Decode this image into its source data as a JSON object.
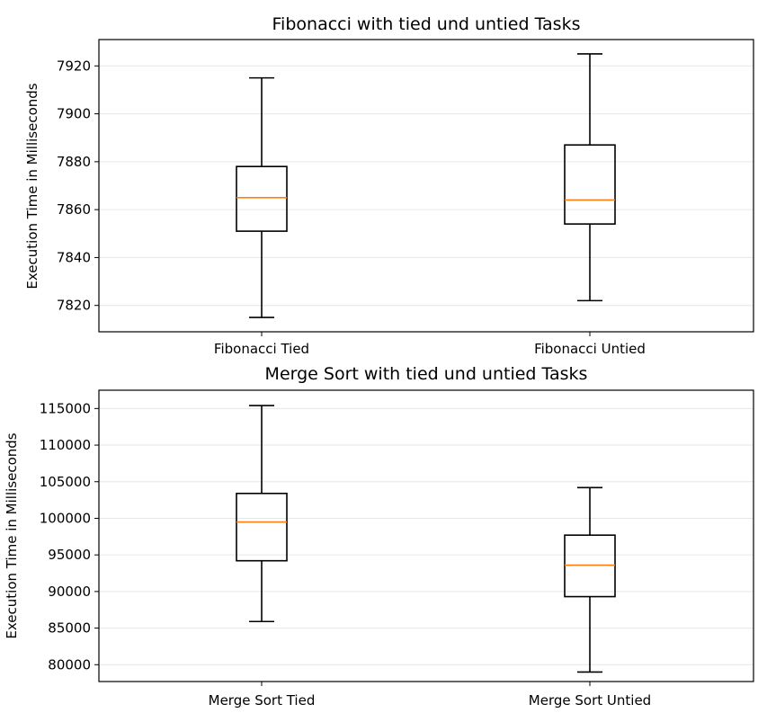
{
  "chart_data": [
    {
      "type": "box",
      "title": "Fibonacci with tied und untied Tasks",
      "xlabel": "",
      "ylabel": "Execution Time in Milliseconds",
      "categories": [
        "Fibonacci Tied",
        "Fibonacci Untied"
      ],
      "ylim": [
        7809,
        7931
      ],
      "yticks": [
        7820,
        7840,
        7860,
        7880,
        7900,
        7920
      ],
      "grid": "horizontal",
      "boxes": [
        {
          "whisker_low": 7815,
          "q1": 7851,
          "median": 7865,
          "q3": 7878,
          "whisker_high": 7915
        },
        {
          "whisker_low": 7822,
          "q1": 7854,
          "median": 7864,
          "q3": 7887,
          "whisker_high": 7925
        }
      ]
    },
    {
      "type": "box",
      "title": "Merge Sort with tied und untied Tasks",
      "xlabel": "",
      "ylabel": "Execution Time in Milliseconds",
      "categories": [
        "Merge Sort Tied",
        "Merge Sort Untied"
      ],
      "ylim": [
        77700,
        117500
      ],
      "yticks": [
        80000,
        85000,
        90000,
        95000,
        100000,
        105000,
        110000,
        115000
      ],
      "grid": "horizontal",
      "boxes": [
        {
          "whisker_low": 85900,
          "q1": 94200,
          "median": 99500,
          "q3": 103400,
          "whisker_high": 115400
        },
        {
          "whisker_low": 79000,
          "q1": 89300,
          "median": 93600,
          "q3": 97700,
          "whisker_high": 104200
        }
      ]
    }
  ],
  "colors": {
    "box": "#000000",
    "median": "#ff7f0e",
    "grid": "#e6e6e6"
  }
}
